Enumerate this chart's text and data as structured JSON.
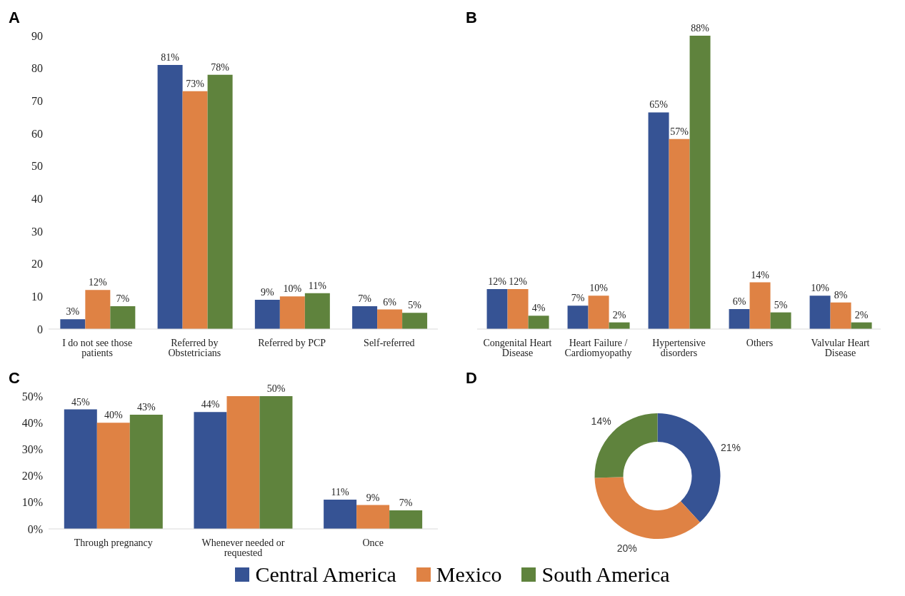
{
  "chart_data": [
    {
      "type": "bar",
      "title": "A",
      "categories": [
        "I do not see those patients",
        "Referred by Obstetricians",
        "Referred by PCP",
        "Self-referred"
      ],
      "ylim": [
        0,
        90
      ],
      "yticks": [
        0,
        10,
        20,
        30,
        40,
        50,
        60,
        70,
        80,
        90
      ],
      "series": [
        {
          "color": "#365394",
          "values": [
            3,
            81,
            9,
            7
          ],
          "value_labels": [
            "3%",
            "81%",
            "9%",
            "7%"
          ]
        },
        {
          "color": "#df8244",
          "values": [
            12,
            73,
            10,
            6
          ],
          "value_labels": [
            "12%",
            "73%",
            "10%",
            "6%"
          ]
        },
        {
          "color": "#5f833d",
          "values": [
            7,
            78,
            11,
            5
          ],
          "value_labels": [
            "7%",
            "78%",
            "11%",
            "5%"
          ]
        }
      ]
    },
    {
      "type": "bar",
      "title": "B",
      "categories": [
        "Congenital Heart Disease",
        "Heart Failure / Cardiomyopathy",
        "Hypertensive disorders",
        "Others",
        "Valvular Heart Disease"
      ],
      "series": [
        {
          "color": "#365394",
          "values": [
            12,
            7,
            65,
            6,
            10
          ],
          "value_labels": [
            "12%",
            "7%",
            "65%",
            "6%",
            "10%"
          ]
        },
        {
          "color": "#df8244",
          "values": [
            12,
            10,
            57,
            14,
            8
          ],
          "value_labels": [
            "12%",
            "10%",
            "57%",
            "14%",
            "8%"
          ]
        },
        {
          "color": "#5f833d",
          "values": [
            4,
            2,
            88,
            5,
            2
          ],
          "value_labels": [
            "4%",
            "2%",
            "88%",
            "5%",
            "2%"
          ]
        }
      ]
    },
    {
      "type": "bar",
      "title": "C",
      "categories": [
        "Through pregnancy",
        "Whenever needed or requested",
        "Once"
      ],
      "ylim": [
        0,
        50
      ],
      "yticks": [
        {
          "value": 0,
          "label": "0%"
        },
        {
          "value": 10,
          "label": "10%"
        },
        {
          "value": 20,
          "label": "20%"
        },
        {
          "value": 30,
          "label": "30%"
        },
        {
          "value": 40,
          "label": "40%"
        },
        {
          "value": 50,
          "label": "50%"
        }
      ],
      "series": [
        {
          "color": "#365394",
          "values": [
            45,
            44,
            11
          ],
          "value_labels": [
            "45%",
            "44%",
            "11%"
          ]
        },
        {
          "color": "#df8244",
          "values": [
            40,
            50,
            9
          ],
          "value_labels": [
            "40%",
            null,
            "9%"
          ]
        },
        {
          "color": "#5f833d",
          "values": [
            43,
            50,
            7
          ],
          "value_labels": [
            "43%",
            "50%",
            "7%"
          ]
        }
      ]
    },
    {
      "type": "donut",
      "title": "D",
      "categories": [
        "Central America",
        "Mexico",
        "South America"
      ],
      "values": [
        21,
        20,
        14
      ],
      "colors": [
        "#365394",
        "#df8244",
        "#5f833d"
      ],
      "value_labels": [
        "21%",
        "20%",
        "14%"
      ],
      "legend": "bottom"
    }
  ]
}
